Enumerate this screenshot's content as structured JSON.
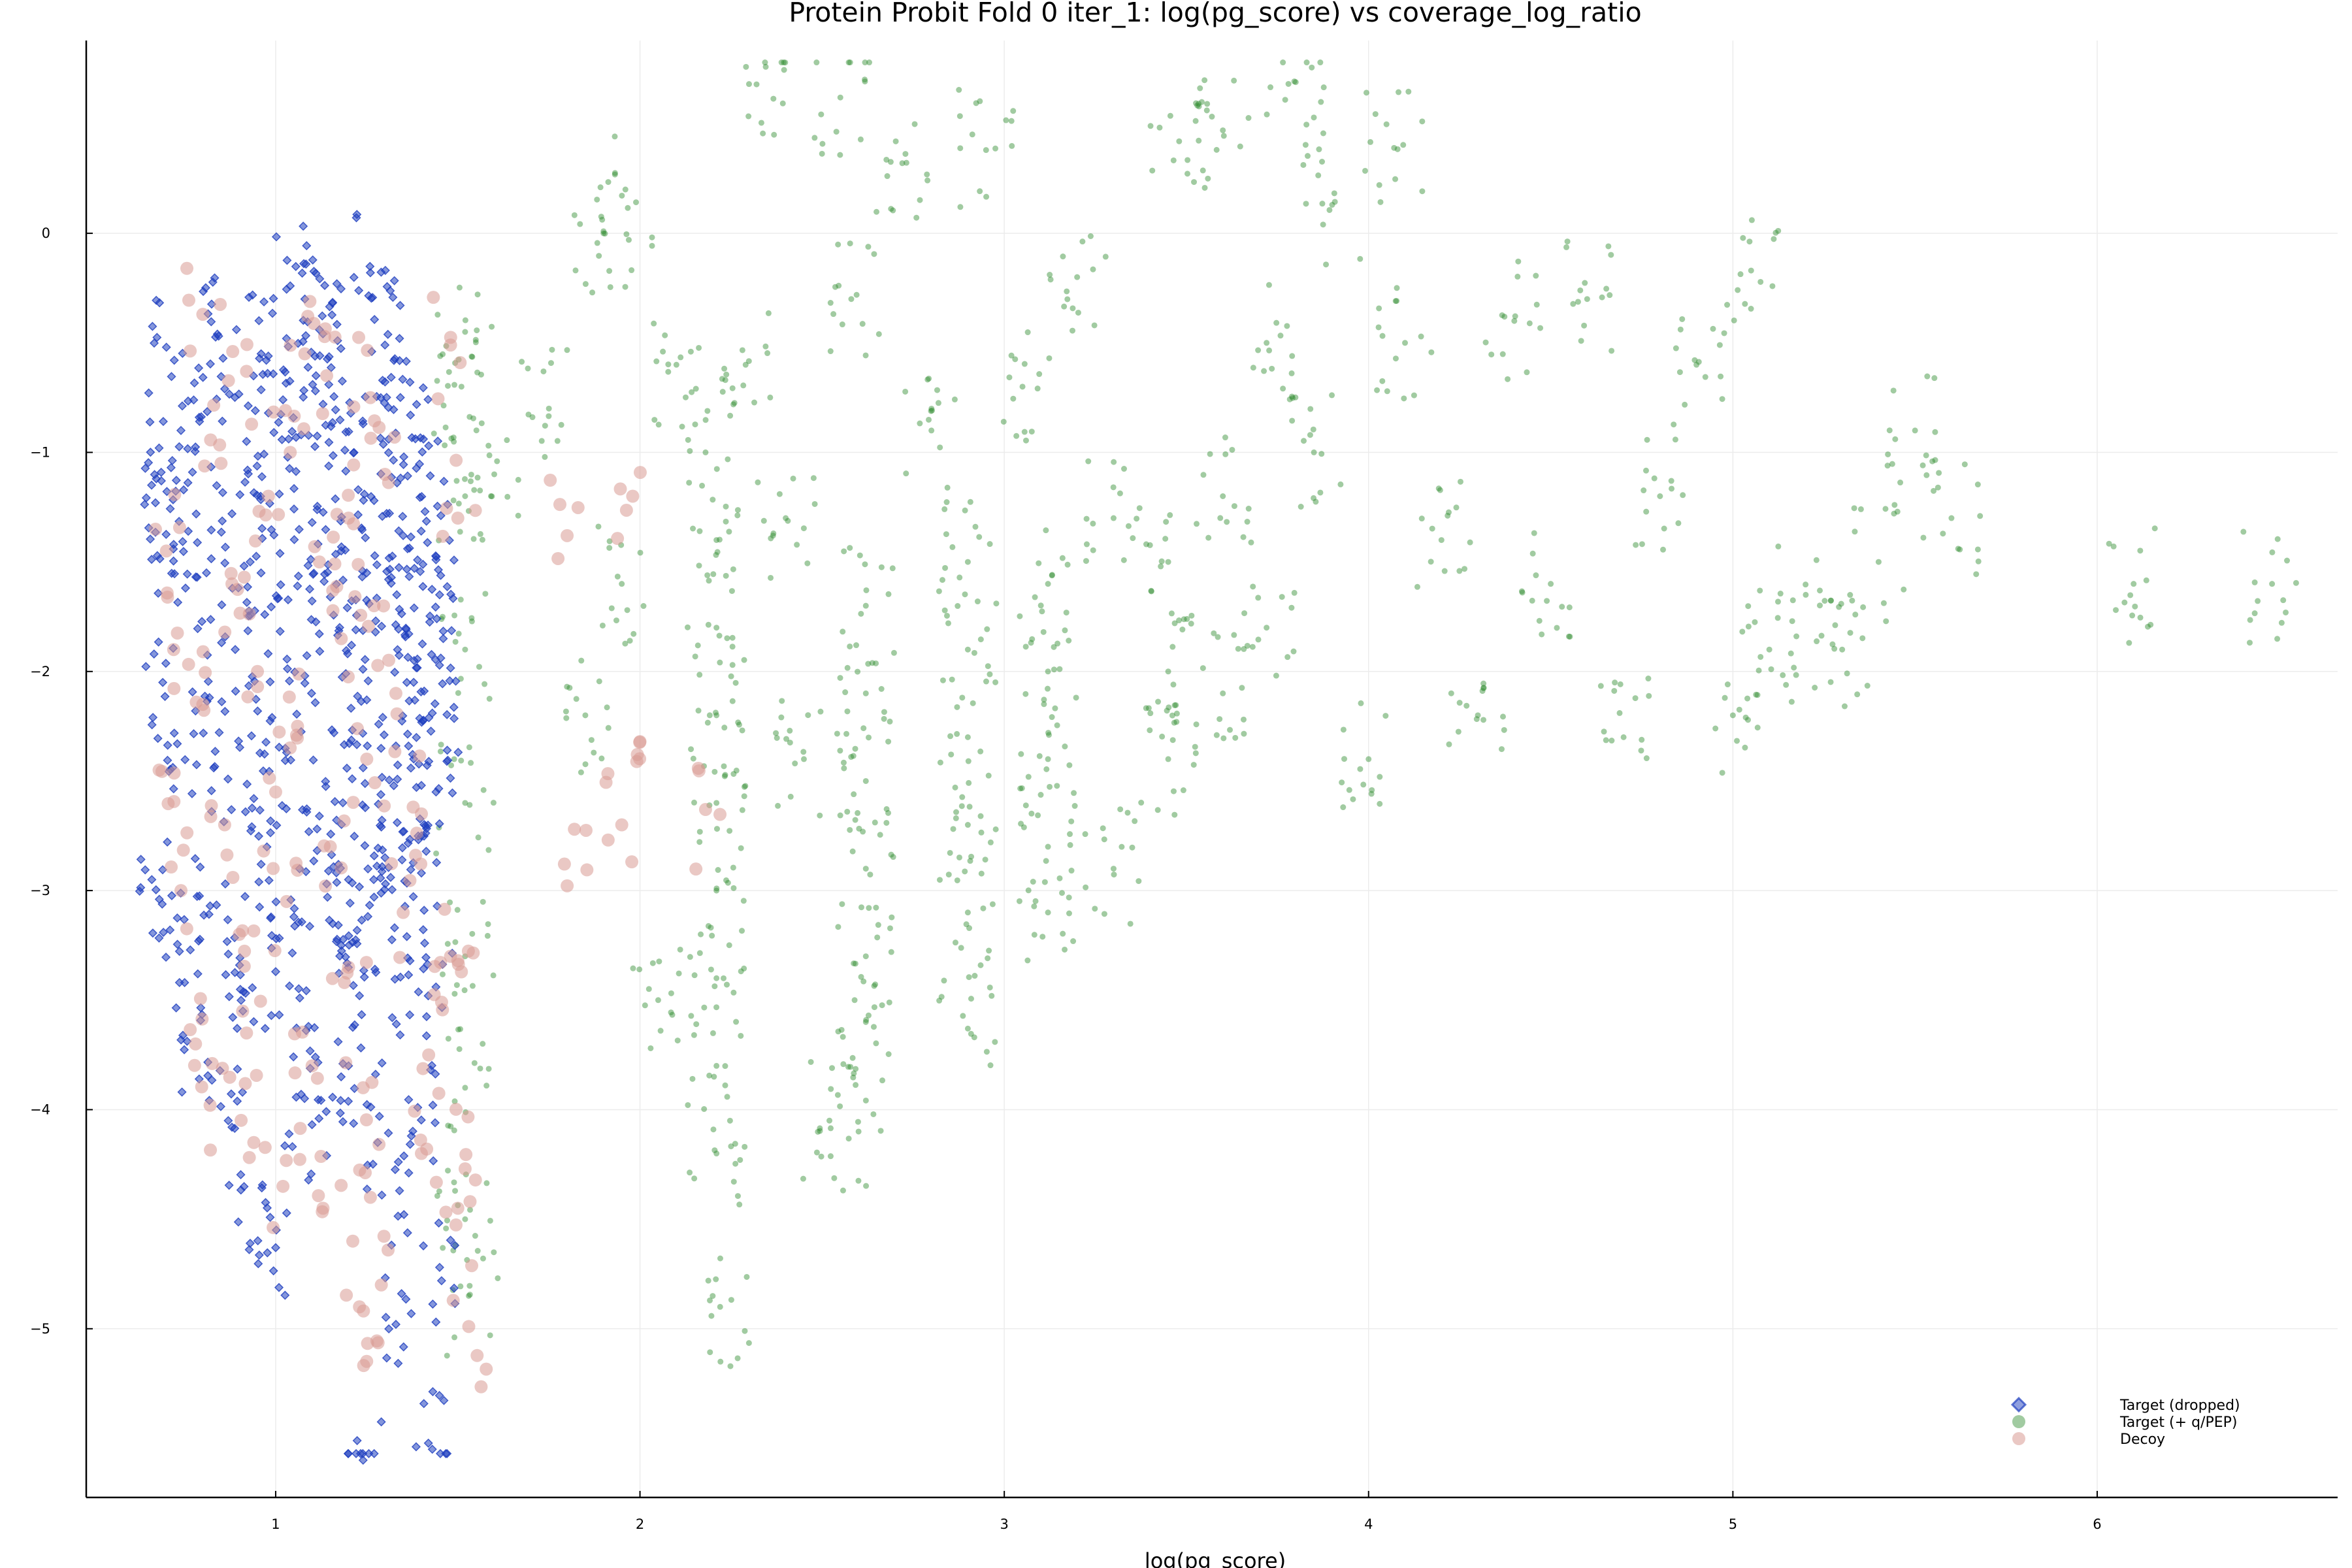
{
  "chart_data": {
    "type": "scatter",
    "title": "Protein Probit Fold 0 iter_1: log(pg_score) vs coverage_log_ratio",
    "xlabel": "log(pg_score)",
    "ylabel": "",
    "xlim": [
      0.48,
      6.66
    ],
    "ylim": [
      -5.77,
      0.88
    ],
    "xticks": [
      1,
      2,
      3,
      4,
      5,
      6
    ],
    "yticks": [
      0,
      -1,
      -2,
      -3,
      -4,
      -5
    ],
    "grid": true,
    "legend_position": "bottom-right",
    "series": [
      {
        "name": "Target (dropped)",
        "marker": "diamond",
        "color": "#1f3fbf",
        "points": [
          [
            0.7,
            -0.52
          ],
          [
            0.84,
            -0.46
          ],
          [
            0.96,
            -0.55
          ],
          [
            1.04,
            -0.24
          ],
          [
            1.08,
            -0.3
          ],
          [
            1.12,
            -0.44
          ],
          [
            1.17,
            -0.49
          ],
          [
            1.26,
            -0.18
          ],
          [
            1.3,
            -0.51
          ],
          [
            1.34,
            -0.48
          ],
          [
            0.68,
            -0.98
          ],
          [
            0.74,
            -0.9
          ],
          [
            0.79,
            -0.84
          ],
          [
            0.86,
            -0.71
          ],
          [
            0.92,
            -0.95
          ],
          [
            0.98,
            -0.82
          ],
          [
            1.02,
            -0.76
          ],
          [
            1.07,
            -0.92
          ],
          [
            1.13,
            -0.78
          ],
          [
            1.19,
            -0.99
          ],
          [
            1.24,
            -0.87
          ],
          [
            1.31,
            -0.94
          ],
          [
            1.37,
            -0.83
          ],
          [
            1.42,
            -0.97
          ],
          [
            0.67,
            -1.23
          ],
          [
            0.72,
            -1.42
          ],
          [
            0.76,
            -1.36
          ],
          [
            0.81,
            -1.55
          ],
          [
            0.88,
            -1.28
          ],
          [
            0.93,
            -1.5
          ],
          [
            0.97,
            -1.74
          ],
          [
            1.01,
            -1.19
          ],
          [
            1.06,
            -1.61
          ],
          [
            1.1,
            -1.32
          ],
          [
            1.15,
            -1.66
          ],
          [
            1.18,
            -1.45
          ],
          [
            1.22,
            -1.81
          ],
          [
            1.27,
            -1.22
          ],
          [
            1.31,
            -1.58
          ],
          [
            1.35,
            -1.38
          ],
          [
            1.38,
            -1.71
          ],
          [
            1.41,
            -1.27
          ],
          [
            1.44,
            -1.49
          ],
          [
            1.46,
            -1.85
          ],
          [
            0.69,
            -2.05
          ],
          [
            0.73,
            -2.33
          ],
          [
            0.78,
            -2.18
          ],
          [
            0.83,
            -2.44
          ],
          [
            0.89,
            -2.09
          ],
          [
            0.94,
            -2.58
          ],
          [
            0.99,
            -2.21
          ],
          [
            1.03,
            -2.37
          ],
          [
            1.08,
            -2.02
          ],
          [
            1.12,
            -2.66
          ],
          [
            1.16,
            -2.28
          ],
          [
            1.21,
            -2.49
          ],
          [
            1.25,
            -2.13
          ],
          [
            1.29,
            -2.71
          ],
          [
            1.33,
            -2.34
          ],
          [
            1.36,
            -2.05
          ],
          [
            1.4,
            -2.52
          ],
          [
            1.43,
            -2.19
          ],
          [
            1.47,
            -2.41
          ],
          [
            0.66,
            -2.95
          ],
          [
            0.71,
            -3.18
          ],
          [
            0.75,
            -3.42
          ],
          [
            0.82,
            -3.07
          ],
          [
            0.87,
            -3.29
          ],
          [
            0.91,
            -3.55
          ],
          [
            0.96,
            -2.88
          ],
          [
            1.0,
            -3.37
          ],
          [
            1.05,
            -3.12
          ],
          [
            1.09,
            -3.62
          ],
          [
            1.14,
            -2.97
          ],
          [
            1.18,
            -3.25
          ],
          [
            1.23,
            -3.48
          ],
          [
            1.27,
            -3.03
          ],
          [
            1.32,
            -3.58
          ],
          [
            1.36,
            -3.21
          ],
          [
            1.4,
            -2.92
          ],
          [
            1.44,
            -3.44
          ],
          [
            0.79,
            -3.86
          ],
          [
            0.88,
            -4.08
          ],
          [
            0.93,
            -4.61
          ],
          [
            1.0,
            -4.63
          ],
          [
            1.07,
            -3.93
          ],
          [
            1.14,
            -4.21
          ],
          [
            1.2,
            -3.8
          ],
          [
            1.28,
            -4.15
          ],
          [
            1.34,
            -4.37
          ],
          [
            1.39,
            -3.99
          ],
          [
            1.45,
            -4.72
          ],
          [
            1.33,
            -4.98
          ],
          [
            1.24,
            -5.6
          ],
          [
            1.43,
            -5.55
          ],
          [
            1.2,
            -2.95
          ],
          [
            1.3,
            -2.85
          ],
          [
            1.38,
            -1.95
          ],
          [
            1.45,
            -1.65
          ],
          [
            1.25,
            -1.55
          ],
          [
            1.4,
            -2.75
          ]
        ]
      },
      {
        "name": "Target (+ q/PEP)",
        "marker": "circle",
        "color": "#2e8b2e",
        "points": [
          [
            1.52,
            -1.2
          ],
          [
            1.52,
            -1.9
          ],
          [
            1.52,
            -2.6
          ],
          [
            1.52,
            -3.3
          ],
          [
            1.52,
            -3.9
          ],
          [
            1.52,
            -4.5
          ],
          [
            1.53,
            -4.85
          ],
          [
            1.51,
            -0.7
          ],
          [
            1.52,
            -0.45
          ],
          [
            1.6,
            -1.1
          ],
          [
            1.75,
            -0.8
          ],
          [
            1.85,
            -2.2
          ],
          [
            1.95,
            -1.6
          ],
          [
            1.9,
            -0.0
          ],
          [
            1.96,
            0.2
          ],
          [
            2.05,
            -3.5
          ],
          [
            2.1,
            -0.6
          ],
          [
            2.18,
            -1.0
          ],
          [
            2.21,
            -1.4
          ],
          [
            2.21,
            -1.8
          ],
          [
            2.21,
            -2.2
          ],
          [
            2.21,
            -2.6
          ],
          [
            2.21,
            -3.0
          ],
          [
            2.21,
            -3.4
          ],
          [
            2.21,
            -3.8
          ],
          [
            2.21,
            -4.2
          ],
          [
            2.22,
            -4.9
          ],
          [
            2.29,
            -0.6
          ],
          [
            2.32,
            0.68
          ],
          [
            2.4,
            -1.3
          ],
          [
            2.45,
            -2.4
          ],
          [
            2.55,
            0.62
          ],
          [
            2.58,
            -0.3
          ],
          [
            2.62,
            -1.7
          ],
          [
            2.62,
            -2.1
          ],
          [
            2.62,
            -2.5
          ],
          [
            2.62,
            -2.9
          ],
          [
            2.62,
            -3.3
          ],
          [
            2.62,
            -3.6
          ],
          [
            2.6,
            -4.1
          ],
          [
            2.52,
            -4.05
          ],
          [
            2.72,
            0.32
          ],
          [
            2.8,
            -0.9
          ],
          [
            2.9,
            -1.5
          ],
          [
            2.9,
            -1.9
          ],
          [
            2.9,
            -2.3
          ],
          [
            2.9,
            -2.7
          ],
          [
            2.9,
            -3.1
          ],
          [
            2.9,
            -3.63
          ],
          [
            2.95,
            0.38
          ],
          [
            3.05,
            -0.7
          ],
          [
            3.12,
            -1.6
          ],
          [
            3.12,
            -2.0
          ],
          [
            3.12,
            -2.4
          ],
          [
            3.12,
            -2.8
          ],
          [
            3.12,
            -3.1
          ],
          [
            3.2,
            -0.2
          ],
          [
            3.3,
            -1.3
          ],
          [
            3.3,
            -2.9
          ],
          [
            3.45,
            -1.5
          ],
          [
            3.45,
            -2.0
          ],
          [
            3.45,
            -2.4
          ],
          [
            3.48,
            0.42
          ],
          [
            3.6,
            0.47
          ],
          [
            3.6,
            -1.2
          ],
          [
            3.6,
            -2.1
          ],
          [
            3.72,
            -0.5
          ],
          [
            3.72,
            -1.8
          ],
          [
            3.8,
            0.69
          ],
          [
            3.85,
            -1.0
          ],
          [
            3.9,
            0.13
          ],
          [
            4.0,
            -2.4
          ],
          [
            4.07,
            0.39
          ],
          [
            4.1,
            -0.5
          ],
          [
            4.2,
            -1.4
          ],
          [
            4.3,
            -2.2
          ],
          [
            4.4,
            -0.4
          ],
          [
            4.5,
            -1.6
          ],
          [
            4.6,
            -0.3
          ],
          [
            4.7,
            -2.3
          ],
          [
            4.8,
            -1.2
          ],
          [
            4.9,
            -0.6
          ],
          [
            5.0,
            -2.2
          ],
          [
            5.05,
            -0.17
          ],
          [
            5.1,
            -1.9
          ],
          [
            5.2,
            -1.65
          ],
          [
            5.3,
            -1.9
          ],
          [
            5.4,
            -1.5
          ],
          [
            5.5,
            -0.9
          ],
          [
            5.6,
            -1.3
          ],
          [
            6.1,
            -1.6
          ],
          [
            6.48,
            -1.6
          ]
        ]
      },
      {
        "name": "Decoy",
        "marker": "circle-large",
        "color": "#d99a94",
        "points": [
          [
            0.8,
            -0.37
          ],
          [
            0.92,
            -0.63
          ],
          [
            1.08,
            -0.55
          ],
          [
            1.14,
            -0.65
          ],
          [
            1.26,
            -0.75
          ],
          [
            1.48,
            -0.51
          ],
          [
            0.85,
            -1.05
          ],
          [
            0.98,
            -1.2
          ],
          [
            1.04,
            -1.0
          ],
          [
            1.2,
            -1.3
          ],
          [
            1.3,
            -1.1
          ],
          [
            0.7,
            -1.45
          ],
          [
            0.88,
            -1.6
          ],
          [
            1.12,
            -1.5
          ],
          [
            1.27,
            -1.7
          ],
          [
            1.5,
            -1.3
          ],
          [
            0.72,
            -1.9
          ],
          [
            0.8,
            -2.15
          ],
          [
            0.95,
            -2.0
          ],
          [
            1.06,
            -2.25
          ],
          [
            1.18,
            -1.85
          ],
          [
            1.33,
            -2.1
          ],
          [
            0.68,
            -2.45
          ],
          [
            0.86,
            -2.7
          ],
          [
            1.0,
            -2.55
          ],
          [
            1.15,
            -2.8
          ],
          [
            1.25,
            -2.4
          ],
          [
            1.4,
            -2.65
          ],
          [
            0.74,
            -3.0
          ],
          [
            0.9,
            -3.2
          ],
          [
            1.03,
            -3.05
          ],
          [
            1.2,
            -3.35
          ],
          [
            1.35,
            -3.1
          ],
          [
            1.48,
            -3.3
          ],
          [
            0.78,
            -3.7
          ],
          [
            0.92,
            -3.65
          ],
          [
            1.1,
            -3.8
          ],
          [
            1.24,
            -3.9
          ],
          [
            1.42,
            -3.75
          ],
          [
            0.82,
            -3.98
          ],
          [
            0.94,
            -4.15
          ],
          [
            1.02,
            -4.35
          ],
          [
            1.13,
            -4.45
          ],
          [
            1.26,
            -4.4
          ],
          [
            1.4,
            -4.2
          ],
          [
            1.5,
            -4.45
          ],
          [
            1.23,
            -4.9
          ],
          [
            1.29,
            -4.8
          ],
          [
            1.53,
            -4.99
          ],
          [
            1.8,
            -1.38
          ],
          [
            1.82,
            -2.72
          ],
          [
            1.98,
            -1.2
          ],
          [
            1.95,
            -2.7
          ],
          [
            2.0,
            -2.32
          ],
          [
            2.18,
            -2.63
          ],
          [
            1.52,
            -4.27
          ],
          [
            1.5,
            -3.32
          ]
        ]
      }
    ]
  }
}
